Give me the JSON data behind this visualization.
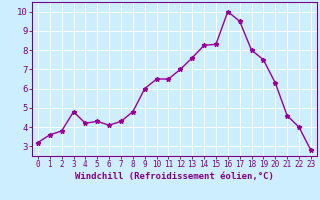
{
  "x": [
    0,
    1,
    2,
    3,
    4,
    5,
    6,
    7,
    8,
    9,
    10,
    11,
    12,
    13,
    14,
    15,
    16,
    17,
    18,
    19,
    20,
    21,
    22,
    23
  ],
  "y": [
    3.2,
    3.6,
    3.8,
    4.8,
    4.2,
    4.3,
    4.1,
    4.3,
    4.8,
    6.0,
    6.5,
    6.5,
    7.0,
    7.6,
    8.25,
    8.3,
    10.0,
    9.5,
    8.0,
    7.5,
    6.3,
    4.6,
    4.0,
    2.8
  ],
  "line_color": "#990099",
  "marker": "*",
  "marker_size": 3.5,
  "xlabel": "Windchill (Refroidissement éolien,°C)",
  "xlabel_fontsize": 6.5,
  "xtick_labels": [
    "0",
    "1",
    "2",
    "3",
    "4",
    "5",
    "6",
    "7",
    "8",
    "9",
    "10",
    "11",
    "12",
    "13",
    "14",
    "15",
    "16",
    "17",
    "18",
    "19",
    "20",
    "21",
    "22",
    "23"
  ],
  "ylim": [
    2.5,
    10.5
  ],
  "yticks": [
    3,
    4,
    5,
    6,
    7,
    8,
    9,
    10
  ],
  "ytick_fontsize": 6.5,
  "xtick_fontsize": 5.5,
  "bg_color": "#cceeff",
  "grid_color": "#ffffff",
  "line_width": 1.0,
  "spine_color": "#800080",
  "tick_color": "#800080",
  "label_color": "#800080"
}
